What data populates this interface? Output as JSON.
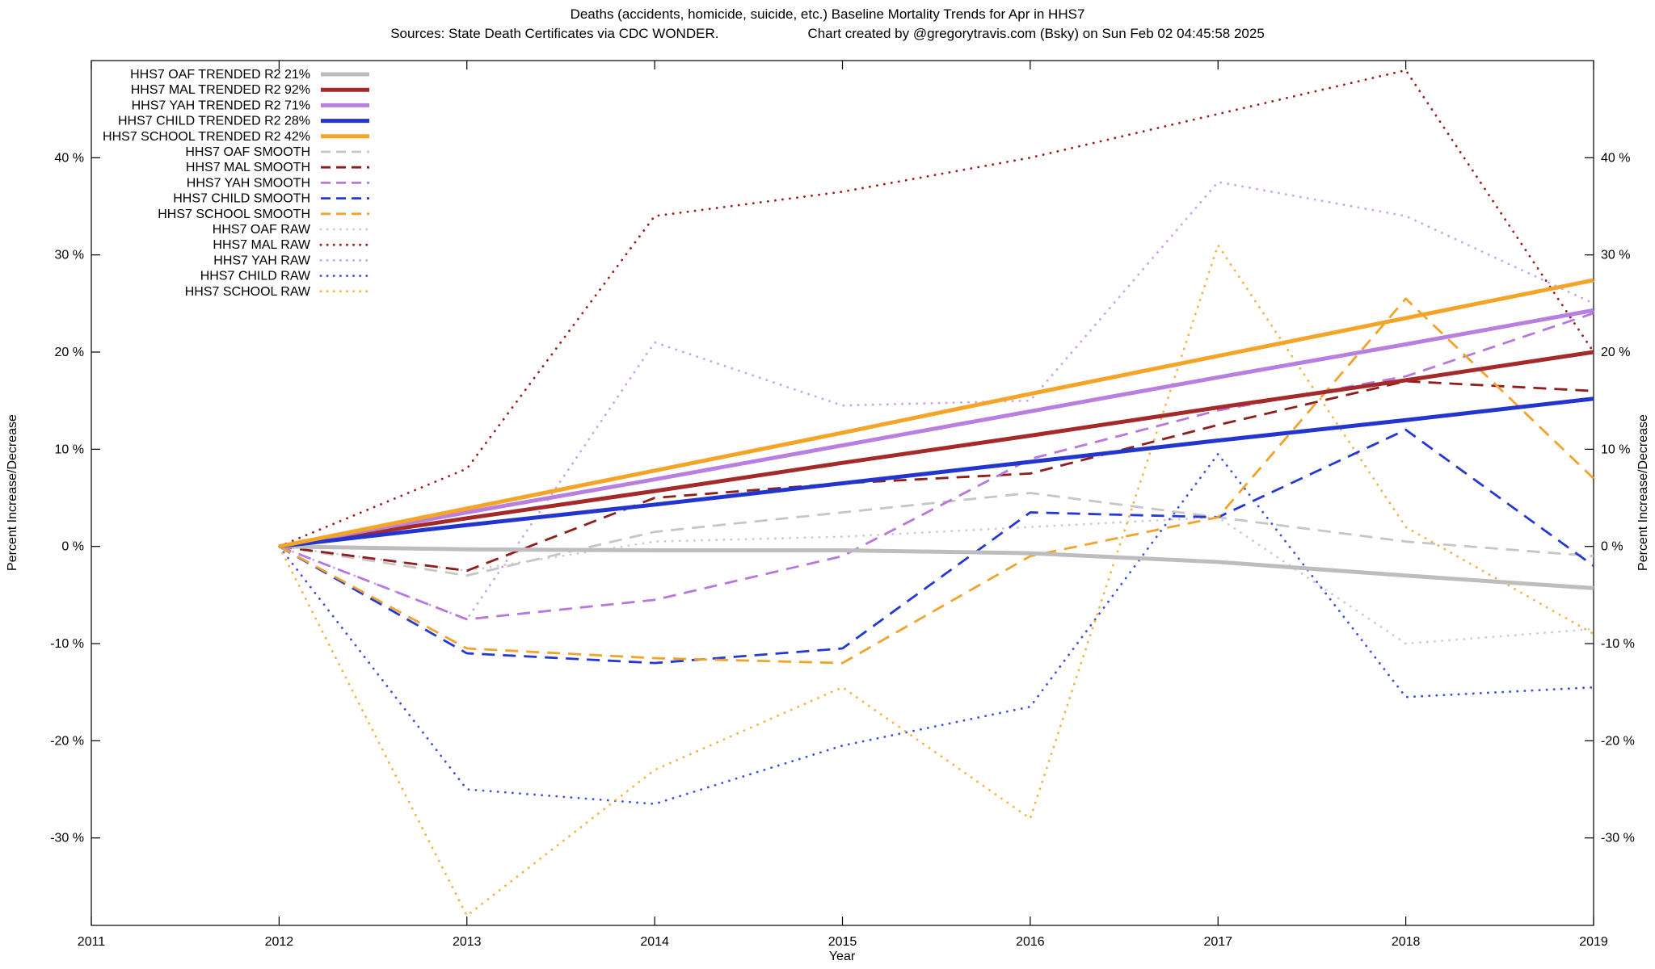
{
  "header": {
    "title": "Deaths (accidents, homicide, suicide, etc.)  Baseline Mortality Trends for Apr in HHS7",
    "source": "Sources: State Death Certificates via CDC WONDER.",
    "credit": "Chart created by @gregorytravis.com (Bsky) on Sun Feb 02 04:45:58 2025"
  },
  "chart_data": {
    "type": "line",
    "title": "Deaths (accidents, homicide, suicide, etc.)  Baseline Mortality Trends for Apr in HHS7",
    "xlabel": "Year",
    "ylabel_left": "Percent Increase/Decrease",
    "ylabel_right": "Percent Increase/Decrease",
    "xlim": [
      2011,
      2019
    ],
    "ylim": [
      -39,
      50
    ],
    "legend_position": "top-left-inside",
    "grid": false,
    "x": [
      2012,
      2013,
      2014,
      2015,
      2016,
      2017,
      2018,
      2019
    ],
    "xticks": [
      {
        "v": 2011,
        "label": "2011"
      },
      {
        "v": 2012,
        "label": "2012"
      },
      {
        "v": 2013,
        "label": "2013"
      },
      {
        "v": 2014,
        "label": "2014"
      },
      {
        "v": 2015,
        "label": "2015"
      },
      {
        "v": 2016,
        "label": "2016"
      },
      {
        "v": 2017,
        "label": "2017"
      },
      {
        "v": 2018,
        "label": "2018"
      },
      {
        "v": 2019,
        "label": "2019"
      }
    ],
    "yticks": [
      {
        "v": 40,
        "label": "40 %"
      },
      {
        "v": 30,
        "label": "30 %"
      },
      {
        "v": 20,
        "label": "20 %"
      },
      {
        "v": 10,
        "label": "10 %"
      },
      {
        "v": 0,
        "label": "0 %"
      },
      {
        "v": -10,
        "label": "-10 %"
      },
      {
        "v": -20,
        "label": "-20 %"
      },
      {
        "v": -30,
        "label": "-30 %"
      }
    ],
    "series": [
      {
        "id": "oaf-trended",
        "name": "HHS7 OAF TRENDED R2  21%",
        "style": "solid",
        "width": 5,
        "color": "#bdbdbd",
        "values": [
          0,
          -0.3,
          -0.4,
          -0.4,
          -0.7,
          -1.6,
          -3.0,
          -4.3
        ]
      },
      {
        "id": "mal-trended",
        "name": "HHS7 MAL TRENDED R2  92%",
        "style": "solid",
        "width": 5,
        "color": "#a42a2a",
        "values": [
          0,
          2.9,
          5.7,
          8.6,
          11.4,
          14.3,
          17.1,
          20.0
        ]
      },
      {
        "id": "yah-trended",
        "name": "HHS7 YAH TRENDED R2  71%",
        "style": "solid",
        "width": 5,
        "color": "#b97fe0",
        "values": [
          0,
          3.5,
          6.9,
          10.4,
          13.9,
          17.4,
          20.8,
          24.3
        ]
      },
      {
        "id": "child-trended",
        "name": "HHS7 CHILD TRENDED R2  28%",
        "style": "solid",
        "width": 5,
        "color": "#2236cf",
        "values": [
          0,
          2.2,
          4.3,
          6.5,
          8.7,
          10.9,
          13.0,
          15.2
        ]
      },
      {
        "id": "school-trended",
        "name": "HHS7 SCHOOL TRENDED R2  42%",
        "style": "solid",
        "width": 5,
        "color": "#f4a427",
        "values": [
          0,
          3.9,
          7.8,
          11.7,
          15.7,
          19.6,
          23.5,
          27.4
        ]
      },
      {
        "id": "oaf-smooth",
        "name": "HHS7 OAF SMOOTH",
        "style": "dashed",
        "width": 2.8,
        "color": "#c6c6c6",
        "values": [
          0,
          -3.0,
          1.5,
          3.5,
          5.5,
          3.0,
          0.5,
          -1.0
        ]
      },
      {
        "id": "mal-smooth",
        "name": "HHS7 MAL SMOOTH",
        "style": "dashed",
        "width": 2.8,
        "color": "#8f1d1d",
        "values": [
          0,
          -2.5,
          5.0,
          6.5,
          7.5,
          12.5,
          17.0,
          16.0
        ]
      },
      {
        "id": "yah-smooth",
        "name": "HHS7 YAH SMOOTH",
        "style": "dashed",
        "width": 2.8,
        "color": "#b678dd",
        "values": [
          0,
          -7.5,
          -5.5,
          -1.0,
          9.0,
          14.0,
          17.5,
          24.0
        ]
      },
      {
        "id": "child-smooth",
        "name": "HHS7 CHILD SMOOTH",
        "style": "dashed",
        "width": 2.8,
        "color": "#2438d6",
        "values": [
          0,
          -11.0,
          -12.0,
          -10.5,
          3.5,
          3.0,
          12.0,
          -2.0
        ]
      },
      {
        "id": "school-smooth",
        "name": "HHS7 SCHOOL SMOOTH",
        "style": "dashed",
        "width": 2.8,
        "color": "#f2a32b",
        "values": [
          0,
          -10.5,
          -11.5,
          -12.0,
          -1.0,
          3.0,
          25.5,
          7.0
        ]
      },
      {
        "id": "oaf-raw",
        "name": "HHS7 OAF RAW",
        "style": "dotted",
        "width": 2.8,
        "color": "#cccccc",
        "values": [
          0,
          -2.5,
          0.5,
          1.0,
          2.0,
          3.0,
          -10.0,
          -8.5
        ]
      },
      {
        "id": "mal-raw",
        "name": "HHS7 MAL RAW",
        "style": "dotted",
        "width": 2.8,
        "color": "#9e1a1a",
        "values": [
          0,
          8.0,
          34.0,
          36.5,
          40.0,
          44.5,
          49.0,
          20.0
        ]
      },
      {
        "id": "yah-raw",
        "name": "HHS7 YAH RAW",
        "style": "dotted",
        "width": 2.8,
        "color": "#c9a1f0",
        "values": [
          0,
          -7.5,
          21.0,
          14.5,
          15.0,
          37.5,
          34.0,
          25.0
        ]
      },
      {
        "id": "child-raw",
        "name": "HHS7 CHILD RAW",
        "style": "dotted",
        "width": 2.8,
        "color": "#3a4fe0",
        "values": [
          0,
          -25.0,
          -26.5,
          -20.5,
          -16.5,
          9.5,
          -15.5,
          -14.5
        ]
      },
      {
        "id": "school-raw",
        "name": "HHS7 SCHOOL RAW",
        "style": "dotted",
        "width": 2.8,
        "color": "#f6b13e",
        "values": [
          0,
          -38.0,
          -23.0,
          -14.5,
          -28.0,
          31.0,
          2.0,
          -9.0
        ]
      }
    ]
  }
}
